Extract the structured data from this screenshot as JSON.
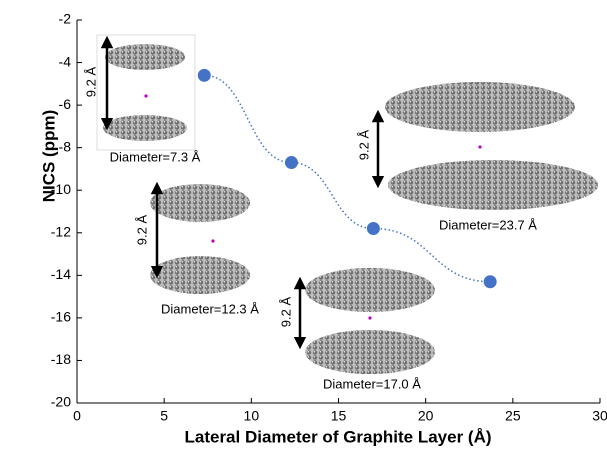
{
  "chart_data": {
    "type": "scatter",
    "xlabel": "Lateral Diameter of Graphite Layer (Å)",
    "ylabel": "NICS (ppm)",
    "xlim": [
      0,
      30
    ],
    "xticks": [
      0,
      5,
      10,
      15,
      20,
      25,
      30
    ],
    "ylim": [
      -20,
      -2
    ],
    "yticks": [
      -20,
      -18,
      -16,
      -14,
      -12,
      -10,
      -8,
      -6,
      -4,
      -2
    ],
    "series": [
      {
        "color": "#4472c4",
        "x": [
          7.3,
          12.3,
          17.0,
          23.7
        ],
        "values": [
          -4.6,
          -8.7,
          -11.8,
          -14.3
        ]
      }
    ],
    "annotations": [
      "Diameter=7.3 Å",
      "9.2 Å",
      "Diameter=12.3 Å",
      "9.2 Å",
      "Diameter=17.0 Å",
      "9.2 Å",
      "Diameter=23.7 Å",
      "9.2 Å"
    ]
  }
}
